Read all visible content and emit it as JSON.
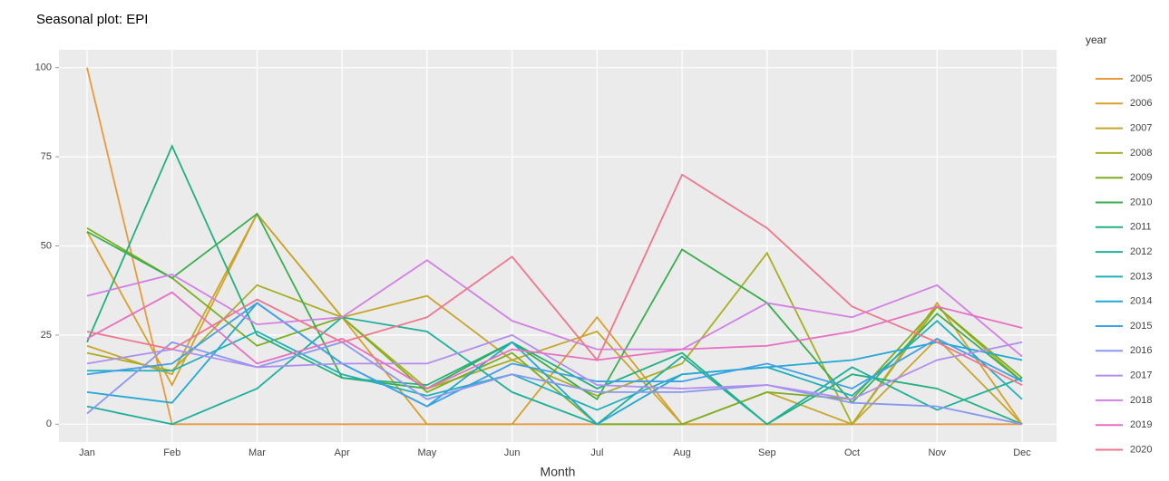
{
  "chart_data": {
    "type": "line",
    "title": "Seasonal plot: EPI",
    "x_label": "Month",
    "legend_title": "year",
    "categories": [
      "Jan",
      "Feb",
      "Mar",
      "Apr",
      "May",
      "Jun",
      "Jul",
      "Aug",
      "Sep",
      "Oct",
      "Nov",
      "Dec"
    ],
    "ylim": [
      -5,
      105
    ],
    "yticks": [
      0,
      25,
      50,
      75,
      100
    ],
    "grid": true,
    "legend": "right",
    "series": [
      {
        "name": "2005",
        "color": "#E89A3C",
        "values": [
          100,
          0,
          0,
          0,
          0,
          0,
          0,
          0,
          0,
          0,
          0,
          0
        ]
      },
      {
        "name": "2006",
        "color": "#D9A02A",
        "values": [
          54,
          11,
          59,
          30,
          0,
          0,
          30,
          0,
          0,
          0,
          34,
          0
        ]
      },
      {
        "name": "2007",
        "color": "#C7A62C",
        "values": [
          22,
          14,
          59,
          30,
          36,
          18,
          26,
          0,
          9,
          0,
          24,
          0
        ]
      },
      {
        "name": "2008",
        "color": "#A9AE22",
        "values": [
          20,
          15,
          39,
          30,
          10,
          18,
          8,
          17,
          48,
          0,
          33,
          12
        ]
      },
      {
        "name": "2009",
        "color": "#7DAE20",
        "values": [
          55,
          41,
          22,
          30,
          9,
          20,
          0,
          0,
          9,
          7,
          33,
          13
        ]
      },
      {
        "name": "2010",
        "color": "#3AAE4E",
        "values": [
          54,
          41,
          59,
          13,
          10,
          23,
          7,
          49,
          34,
          6,
          31,
          12
        ]
      },
      {
        "name": "2011",
        "color": "#22B07E",
        "values": [
          23,
          78,
          25,
          13,
          11,
          23,
          10,
          20,
          0,
          14,
          10,
          0
        ]
      },
      {
        "name": "2012",
        "color": "#1FB09C",
        "values": [
          5,
          0,
          10,
          30,
          26,
          9,
          0,
          19,
          0,
          16,
          4,
          13
        ]
      },
      {
        "name": "2013",
        "color": "#1FB0BA",
        "values": [
          15,
          15,
          26,
          14,
          8,
          14,
          4,
          14,
          16,
          8,
          29,
          7
        ]
      },
      {
        "name": "2014",
        "color": "#22A8D4",
        "values": [
          9,
          6,
          34,
          17,
          5,
          23,
          0,
          14,
          16,
          18,
          23,
          18
        ]
      },
      {
        "name": "2015",
        "color": "#3F9FE8",
        "values": [
          14,
          17,
          34,
          17,
          5,
          17,
          12,
          12,
          17,
          10,
          24,
          12
        ]
      },
      {
        "name": "2016",
        "color": "#8A97F0",
        "values": [
          3,
          23,
          16,
          23,
          7,
          14,
          9,
          9,
          11,
          6,
          5,
          0
        ]
      },
      {
        "name": "2017",
        "color": "#B08EF0",
        "values": [
          17,
          21,
          16,
          17,
          17,
          25,
          11,
          10,
          11,
          7,
          18,
          23
        ]
      },
      {
        "name": "2018",
        "color": "#D27FE6",
        "values": [
          36,
          42,
          28,
          30,
          46,
          29,
          21,
          21,
          34,
          30,
          39,
          19
        ]
      },
      {
        "name": "2019",
        "color": "#E86FC2",
        "values": [
          24,
          37,
          17,
          24,
          10,
          21,
          18,
          21,
          22,
          26,
          33,
          27
        ]
      },
      {
        "name": "2020",
        "color": "#F0768E",
        "values": [
          26,
          21,
          35,
          23,
          30,
          47,
          18,
          70,
          55,
          33,
          23,
          11
        ]
      }
    ]
  }
}
